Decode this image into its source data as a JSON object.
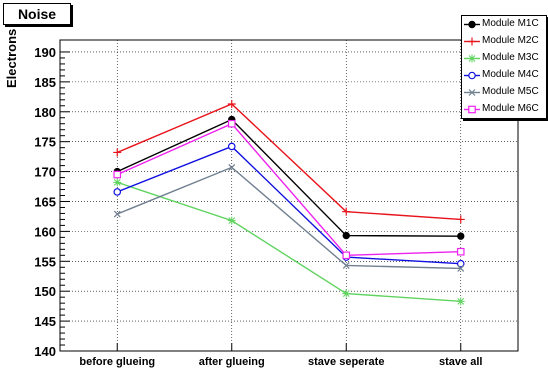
{
  "chart_data": {
    "type": "line",
    "title": "Noise",
    "xlabel": "",
    "ylabel": "Electrons",
    "ylim": [
      140,
      192
    ],
    "yticks": [
      "140",
      "145",
      "150",
      "155",
      "160",
      "165",
      "170",
      "175",
      "180",
      "185",
      "190"
    ],
    "categories": [
      "before glueing",
      "after glueing",
      "stave seperate",
      "stave all"
    ],
    "grid": true,
    "legend_position": "top-right",
    "series": [
      {
        "name": "Module M1C",
        "color": "#000000",
        "marker": "filled-circle",
        "values": [
          170.0,
          178.7,
          159.3,
          159.2
        ]
      },
      {
        "name": "Module M2C",
        "color": "#e8141c",
        "marker": "plus",
        "values": [
          173.2,
          181.3,
          163.3,
          162.0
        ]
      },
      {
        "name": "Module M3C",
        "color": "#5fd35f",
        "marker": "asterisk",
        "values": [
          168.2,
          161.8,
          149.6,
          148.3
        ]
      },
      {
        "name": "Module M4C",
        "color": "#1010e0",
        "marker": "open-circle",
        "values": [
          166.6,
          174.2,
          155.7,
          154.6
        ]
      },
      {
        "name": "Module M5C",
        "color": "#708090",
        "marker": "cross",
        "values": [
          162.9,
          170.7,
          154.3,
          153.8
        ]
      },
      {
        "name": "Module M6C",
        "color": "#ee22ee",
        "marker": "open-square",
        "values": [
          169.5,
          178.0,
          156.0,
          156.6
        ]
      }
    ]
  }
}
